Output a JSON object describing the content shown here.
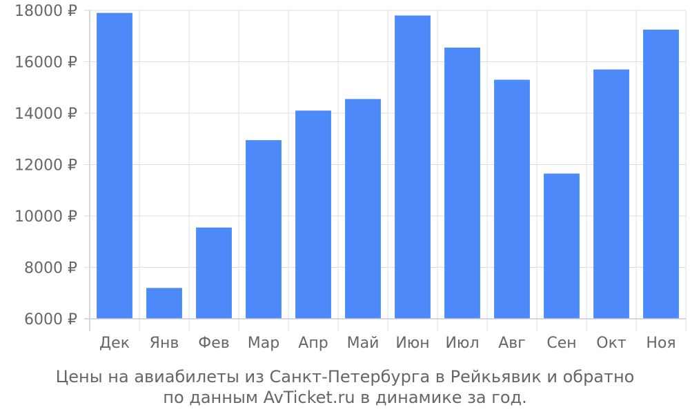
{
  "chart_data": {
    "type": "bar",
    "categories": [
      "Дек",
      "Янв",
      "Фев",
      "Мар",
      "Апр",
      "Май",
      "Июн",
      "Июл",
      "Авг",
      "Сен",
      "Окт",
      "Ноя"
    ],
    "values": [
      17900,
      7200,
      9550,
      12950,
      14100,
      14550,
      17800,
      16550,
      15300,
      11650,
      15700,
      17250
    ],
    "ylim": [
      6000,
      18000
    ],
    "yticks": [
      6000,
      8000,
      10000,
      12000,
      14000,
      16000,
      18000
    ],
    "y_tick_suffix": " ₽",
    "grid": true,
    "bar_color": "#4d89f9",
    "grid_color": "#dddddd",
    "axis_text_color": "#666666"
  },
  "caption": {
    "line1": "Цены на авиабилеты из Санкт-Петербурга в Рейкьявик и обратно",
    "line2": "по данным AvTicket.ru в динамике за год."
  }
}
